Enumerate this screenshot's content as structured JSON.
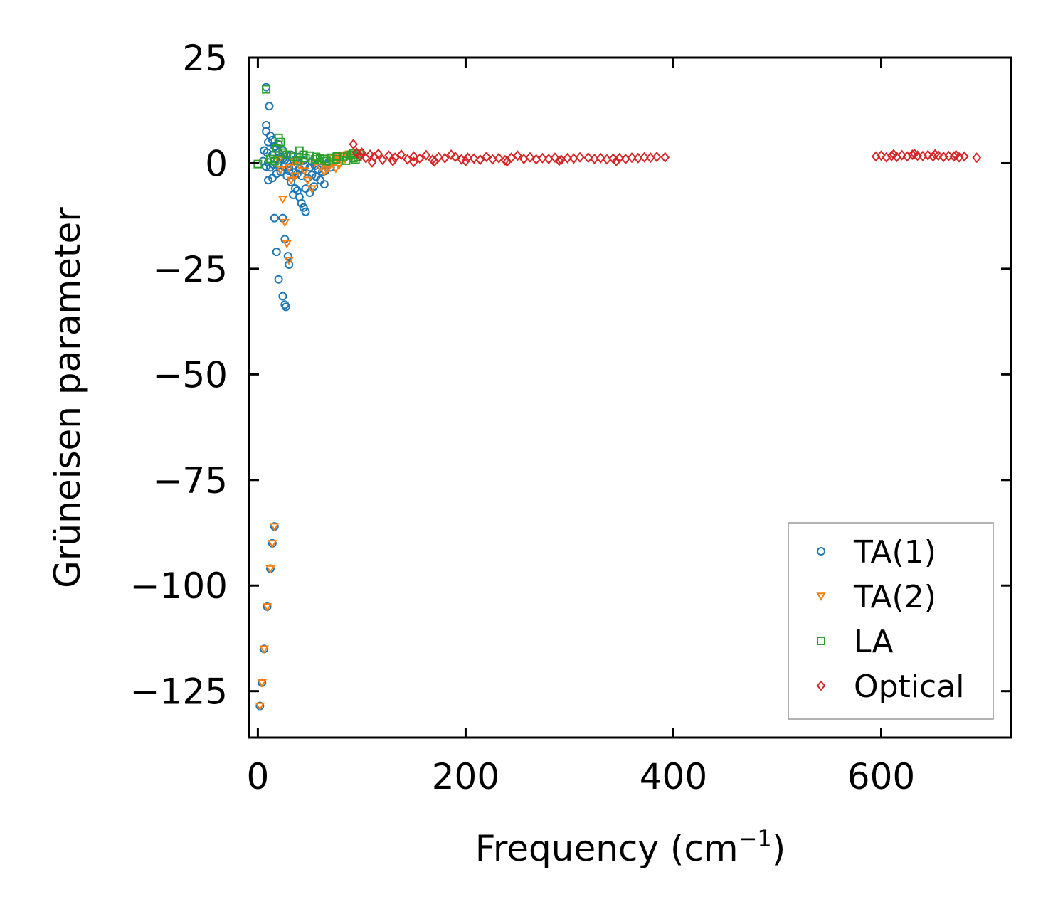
{
  "chart_data": {
    "type": "scatter",
    "title": "",
    "xlabel_main": "Frequency (cm",
    "xlabel_sup": "−1",
    "xlabel_close": ")",
    "ylabel": "Grüneisen parameter",
    "xlim": [
      -8.5,
      725
    ],
    "ylim": [
      -136,
      25
    ],
    "xticks": [
      0,
      200,
      400,
      600
    ],
    "xtick_labels": [
      "0",
      "200",
      "400",
      "600"
    ],
    "yticks": [
      25,
      0,
      -25,
      -50,
      -75,
      -100,
      -125
    ],
    "ytick_labels": [
      "25",
      "0",
      "−25",
      "−50",
      "−75",
      "−100",
      "−125"
    ],
    "legend_position": "lower-right",
    "series": [
      {
        "name": "TA(1)",
        "marker": "circle",
        "color": "#1f77b4",
        "points": [
          [
            2,
            -128.5
          ],
          [
            4,
            -123
          ],
          [
            6,
            -115
          ],
          [
            9,
            -105
          ],
          [
            12,
            -96
          ],
          [
            14,
            -90
          ],
          [
            16,
            -86
          ],
          [
            8,
            18
          ],
          [
            11,
            13.5
          ],
          [
            8,
            9
          ],
          [
            8,
            7.5
          ],
          [
            12,
            6.5
          ],
          [
            14,
            5.5
          ],
          [
            10,
            5
          ],
          [
            16,
            4
          ],
          [
            18,
            3.5
          ],
          [
            6,
            3
          ],
          [
            9,
            2.5
          ],
          [
            14,
            2
          ],
          [
            20,
            2.5
          ],
          [
            22,
            1.5
          ],
          [
            24,
            1
          ],
          [
            26,
            0.8
          ],
          [
            28,
            0.5
          ],
          [
            5,
            0.5
          ],
          [
            10,
            0.2
          ],
          [
            15,
            -0.3
          ],
          [
            20,
            -0.5
          ],
          [
            25,
            -0.8
          ],
          [
            30,
            -1
          ],
          [
            35,
            -0.5
          ],
          [
            40,
            -1.2
          ],
          [
            45,
            -0.8
          ],
          [
            50,
            -1
          ],
          [
            55,
            -0.6
          ],
          [
            58,
            -1.5
          ],
          [
            62,
            -2
          ],
          [
            65,
            -1.8
          ],
          [
            38,
            -2.5
          ],
          [
            42,
            -3
          ],
          [
            48,
            -3.5
          ],
          [
            52,
            -2.8
          ],
          [
            56,
            -3.2
          ],
          [
            60,
            -4
          ],
          [
            64,
            -5
          ],
          [
            46,
            -6
          ],
          [
            50,
            -7
          ],
          [
            54,
            -5.5
          ],
          [
            10,
            -4
          ],
          [
            14,
            -3.5
          ],
          [
            18,
            -2.5
          ],
          [
            22,
            -2
          ],
          [
            28,
            -3
          ],
          [
            32,
            -4.5
          ],
          [
            36,
            -6
          ],
          [
            40,
            -8
          ],
          [
            42,
            -9.5
          ],
          [
            44,
            -10.5
          ],
          [
            46,
            -11.5
          ],
          [
            16,
            -13
          ],
          [
            24,
            -13
          ],
          [
            18,
            -21
          ],
          [
            20,
            -27.5
          ],
          [
            26,
            -18
          ],
          [
            29,
            -22
          ],
          [
            30,
            -24
          ],
          [
            24,
            -31.5
          ],
          [
            26,
            -33.5
          ],
          [
            27,
            -34
          ],
          [
            34,
            -7.5
          ],
          [
            38,
            -6.5
          ],
          [
            30,
            -1.8
          ],
          [
            34,
            -2.2
          ],
          [
            12,
            -1
          ],
          [
            8,
            -0.8
          ],
          [
            70,
            -1
          ],
          [
            68,
            0.2
          ],
          [
            36,
            0.8
          ],
          [
            44,
            0.6
          ],
          [
            52,
            0.4
          ],
          [
            60,
            0.5
          ],
          [
            40,
            1.5
          ],
          [
            32,
            2
          ],
          [
            24,
            3
          ],
          [
            20,
            4.5
          ],
          [
            66,
            -0.5
          ]
        ]
      },
      {
        "name": "TA(2)",
        "marker": "triangle-down",
        "color": "#ff7f0e",
        "points": [
          [
            2,
            -128.5
          ],
          [
            4,
            -123
          ],
          [
            6,
            -115
          ],
          [
            9,
            -105
          ],
          [
            12,
            -96
          ],
          [
            14,
            -90
          ],
          [
            16,
            -86
          ],
          [
            24,
            -8.5
          ],
          [
            26,
            -14
          ],
          [
            28,
            -19
          ],
          [
            30,
            -23
          ],
          [
            32,
            -4
          ],
          [
            36,
            -3
          ],
          [
            48,
            -4
          ],
          [
            52,
            -6
          ],
          [
            70,
            0.5
          ],
          [
            72,
            1.2
          ],
          [
            74,
            0.3
          ],
          [
            76,
            1.5
          ],
          [
            78,
            0.8
          ],
          [
            80,
            1.8
          ],
          [
            82,
            2
          ],
          [
            84,
            1
          ],
          [
            86,
            1.6
          ],
          [
            88,
            2.2
          ],
          [
            90,
            1.4
          ],
          [
            68,
            -1
          ],
          [
            66,
            -1.5
          ],
          [
            64,
            -2
          ],
          [
            78,
            -0.5
          ],
          [
            75,
            -1.2
          ],
          [
            22,
            -1.5
          ],
          [
            30,
            -1
          ],
          [
            40,
            -0.5
          ],
          [
            55,
            0.2
          ],
          [
            60,
            -0.8
          ],
          [
            45,
            -1.8
          ],
          [
            35,
            0.4
          ],
          [
            20,
            0.8
          ]
        ]
      },
      {
        "name": "LA",
        "marker": "square",
        "color": "#2ca02c",
        "points": [
          [
            0,
            -0.2
          ],
          [
            8,
            17.5
          ],
          [
            20,
            6
          ],
          [
            22,
            5
          ],
          [
            18,
            3.5
          ],
          [
            40,
            3
          ],
          [
            44,
            2
          ],
          [
            50,
            1.8
          ],
          [
            56,
            1.5
          ],
          [
            60,
            1.2
          ],
          [
            64,
            1
          ],
          [
            70,
            1.3
          ],
          [
            76,
            1.6
          ],
          [
            82,
            1.4
          ],
          [
            86,
            1.8
          ],
          [
            90,
            2
          ],
          [
            92,
            1.2
          ],
          [
            94,
            0.8
          ],
          [
            96,
            1.5
          ],
          [
            98,
            2.2
          ],
          [
            92,
            2.4
          ],
          [
            85,
            0.6
          ],
          [
            75,
            0.9
          ],
          [
            66,
            0.5
          ],
          [
            55,
            0.9
          ],
          [
            46,
            1.2
          ],
          [
            34,
            1.5
          ],
          [
            28,
            2
          ],
          [
            24,
            2.5
          ],
          [
            12,
            1
          ],
          [
            16,
            0.5
          ],
          [
            38,
            0.6
          ]
        ]
      },
      {
        "name": "Optical",
        "marker": "diamond",
        "color": "#d62728",
        "points": [
          [
            92,
            4.5
          ],
          [
            95,
            2.5
          ],
          [
            98,
            1.8
          ],
          [
            100,
            2.5
          ],
          [
            104,
            1.2
          ],
          [
            108,
            2
          ],
          [
            112,
            1.5
          ],
          [
            116,
            2.2
          ],
          [
            120,
            0.8
          ],
          [
            126,
            1.8
          ],
          [
            132,
            1.3
          ],
          [
            138,
            2
          ],
          [
            144,
            0.9
          ],
          [
            150,
            1.6
          ],
          [
            156,
            1.1
          ],
          [
            162,
            1.9
          ],
          [
            168,
            0.8
          ],
          [
            174,
            1.4
          ],
          [
            180,
            1.2
          ],
          [
            186,
            2
          ],
          [
            190,
            1.5
          ],
          [
            196,
            0.9
          ],
          [
            202,
            1.3
          ],
          [
            208,
            1.1
          ],
          [
            214,
            0.8
          ],
          [
            220,
            1.5
          ],
          [
            226,
            0.9
          ],
          [
            232,
            1.2
          ],
          [
            238,
            0.7
          ],
          [
            244,
            1.3
          ],
          [
            250,
            1.8
          ],
          [
            256,
            1
          ],
          [
            262,
            1.4
          ],
          [
            268,
            0.9
          ],
          [
            274,
            1.2
          ],
          [
            280,
            1
          ],
          [
            286,
            1.3
          ],
          [
            292,
            0.8
          ],
          [
            298,
            1.2
          ],
          [
            304,
            1.1
          ],
          [
            310,
            1.4
          ],
          [
            318,
            1.3
          ],
          [
            324,
            1
          ],
          [
            330,
            1.2
          ],
          [
            336,
            0.9
          ],
          [
            342,
            1.1
          ],
          [
            348,
            1.2
          ],
          [
            354,
            1
          ],
          [
            360,
            1.3
          ],
          [
            366,
            1.2
          ],
          [
            372,
            1.4
          ],
          [
            378,
            1.3
          ],
          [
            384,
            1.5
          ],
          [
            392,
            1.4
          ],
          [
            110,
            0.2
          ],
          [
            130,
            0.5
          ],
          [
            150,
            0.3
          ],
          [
            170,
            0.4
          ],
          [
            200,
            0.5
          ],
          [
            240,
            0.4
          ],
          [
            290,
            0.6
          ],
          [
            345,
            0.5
          ],
          [
            595,
            1.6
          ],
          [
            600,
            1.8
          ],
          [
            605,
            1.4
          ],
          [
            610,
            1.7
          ],
          [
            615,
            1.5
          ],
          [
            620,
            1.9
          ],
          [
            625,
            1.6
          ],
          [
            630,
            2
          ],
          [
            635,
            1.8
          ],
          [
            640,
            1.7
          ],
          [
            645,
            1.9
          ],
          [
            650,
            1.6
          ],
          [
            655,
            1.8
          ],
          [
            660,
            1.5
          ],
          [
            665,
            1.7
          ],
          [
            670,
            1.6
          ],
          [
            675,
            1.4
          ],
          [
            680,
            1.6
          ],
          [
            692,
            1.3
          ],
          [
            612,
            2.1
          ],
          [
            632,
            2.2
          ],
          [
            652,
            2.1
          ],
          [
            672,
            1.9
          ]
        ]
      }
    ]
  }
}
